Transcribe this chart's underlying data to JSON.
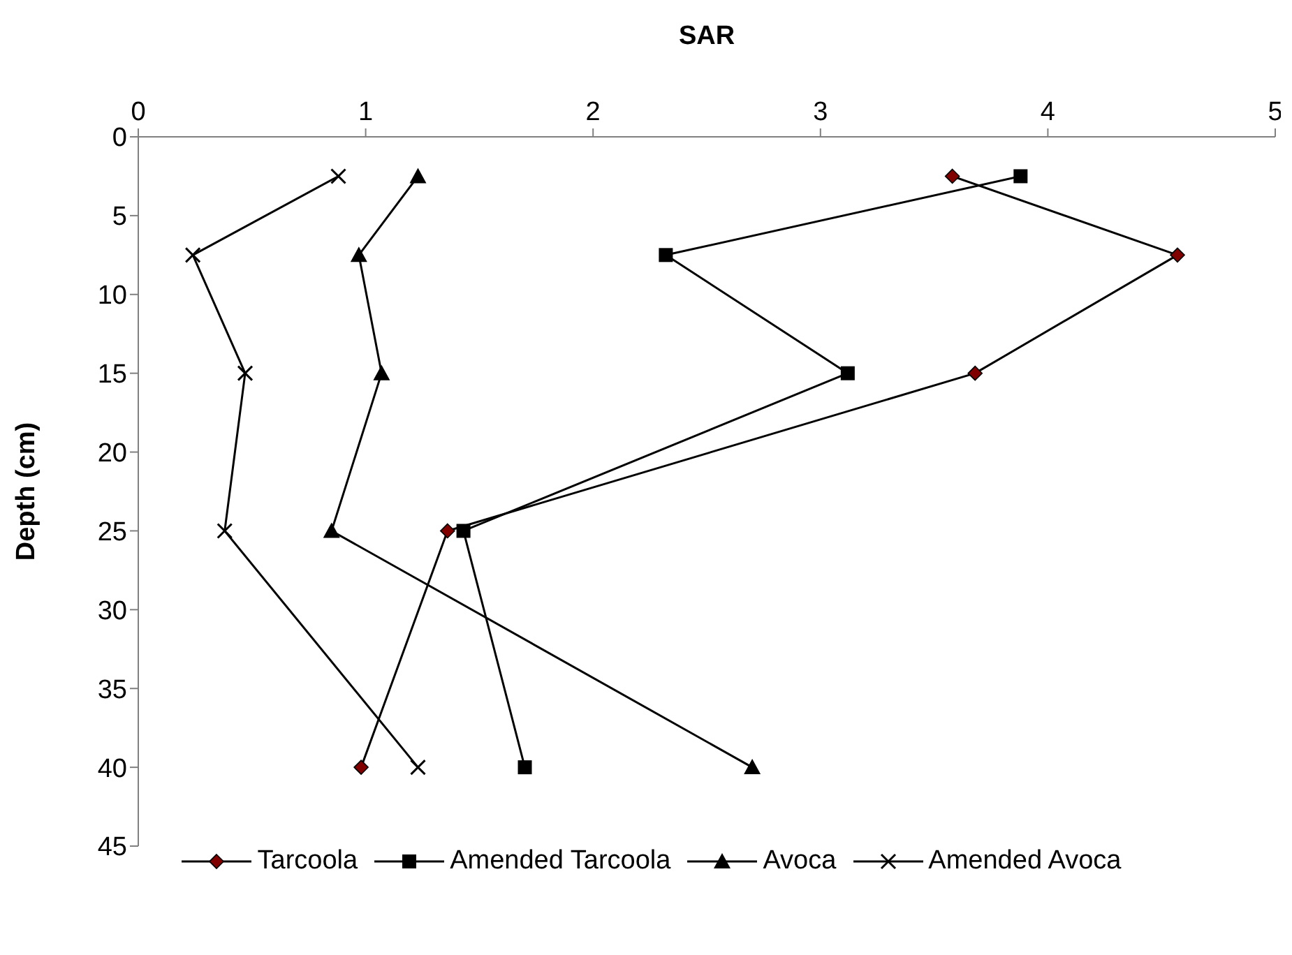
{
  "chart_data": {
    "type": "line",
    "xlabel": "SAR",
    "ylabel": "Depth (cm)",
    "xlim": [
      0,
      5
    ],
    "xticks": [
      0,
      1,
      2,
      3,
      4,
      5
    ],
    "ylim": [
      45,
      0
    ],
    "yticks": [
      0,
      5,
      10,
      15,
      20,
      25,
      30,
      35,
      40,
      45
    ],
    "grid": false,
    "legend": "bottom",
    "line_style": "solid",
    "series": [
      {
        "name": "Tarcoola",
        "color": "#800000",
        "marker": "diamond",
        "x": [
          3.58,
          4.57,
          3.68,
          1.36,
          0.98
        ],
        "values": [
          2.5,
          7.5,
          15,
          25,
          40
        ]
      },
      {
        "name": "Amended Tarcoola",
        "color": "#000000",
        "marker": "square",
        "x": [
          3.88,
          2.32,
          3.12,
          1.43,
          1.7
        ],
        "values": [
          2.5,
          7.5,
          15,
          25,
          40
        ]
      },
      {
        "name": "Avoca",
        "color": "#000000",
        "marker": "triangle",
        "x": [
          1.23,
          0.97,
          1.07,
          0.85,
          2.7
        ],
        "values": [
          2.5,
          7.5,
          15,
          25,
          40
        ]
      },
      {
        "name": "Amended Avoca",
        "color": "#000000",
        "marker": "cross",
        "x": [
          0.88,
          0.24,
          0.47,
          0.38,
          1.23
        ],
        "values": [
          2.5,
          7.5,
          15,
          25,
          40
        ]
      }
    ]
  }
}
